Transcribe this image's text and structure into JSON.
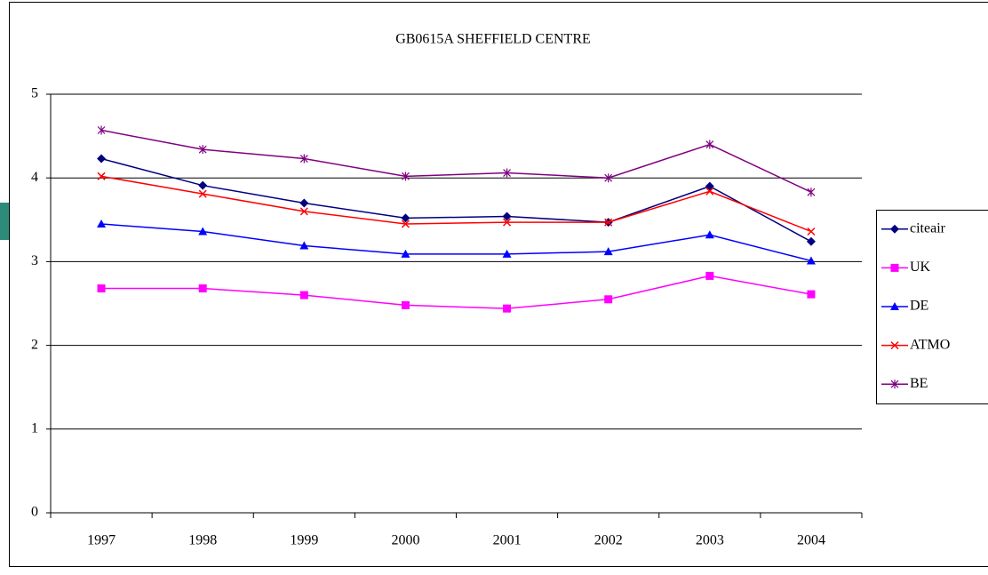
{
  "chart_data": {
    "type": "line",
    "title": "GB0615A SHEFFIELD CENTRE",
    "categories": [
      "1997",
      "1998",
      "1999",
      "2000",
      "2001",
      "2002",
      "2003",
      "2004"
    ],
    "series": [
      {
        "name": "citeair",
        "color": "#000080",
        "marker": "diamond",
        "values": [
          4.23,
          3.91,
          3.7,
          3.52,
          3.54,
          3.47,
          3.9,
          3.24
        ]
      },
      {
        "name": "UK",
        "color": "#ff00ff",
        "marker": "square",
        "values": [
          2.68,
          2.68,
          2.6,
          2.48,
          2.44,
          2.55,
          2.83,
          2.61
        ]
      },
      {
        "name": "DE",
        "color": "#0000ff",
        "marker": "triangle",
        "values": [
          3.45,
          3.36,
          3.19,
          3.09,
          3.09,
          3.12,
          3.32,
          3.01
        ]
      },
      {
        "name": "ATMO",
        "color": "#ff0000",
        "marker": "x",
        "values": [
          4.02,
          3.81,
          3.6,
          3.45,
          3.47,
          3.47,
          3.84,
          3.36
        ]
      },
      {
        "name": "BE",
        "color": "#800080",
        "marker": "star",
        "values": [
          4.57,
          4.34,
          4.23,
          4.02,
          4.06,
          4.0,
          4.4,
          3.83
        ]
      }
    ],
    "ylim": [
      0,
      5
    ],
    "yticks": [
      0,
      1,
      2,
      3,
      4,
      5
    ],
    "grid": true,
    "legend": "right"
  }
}
